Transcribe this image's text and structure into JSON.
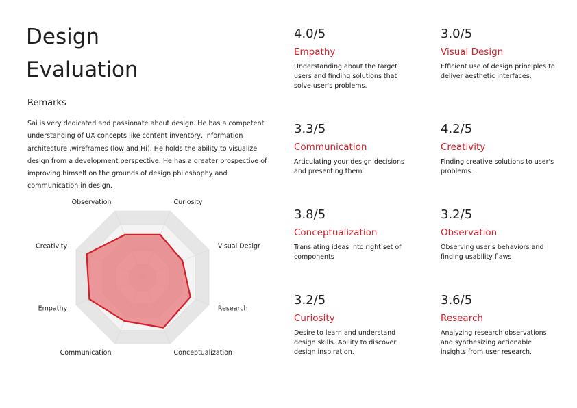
{
  "page": {
    "title_line1": "Design",
    "title_line2": "Evaluation",
    "remarks_heading": "Remarks",
    "remarks_text": "Sai is very dedicated and passionate about design. He has a competent understanding of UX concepts like content inventory, information architecture ,wireframes (low and Hi). He holds the ability to visualize design from a development perspective. He has a  greater prospective of improving himself on the grounds of design philoshophy and communication in design."
  },
  "criteria": [
    {
      "score": "4.0/5",
      "name": "Empathy",
      "desc": "Understanding about the target users and finding solutions that solve user's problems."
    },
    {
      "score": "3.0/5",
      "name": "Visual Design",
      "desc": "Efficient use of design principles to deliver aesthetic interfaces."
    },
    {
      "score": "3.3/5",
      "name": "Communication",
      "desc": "Articulating your design decisions and presenting them."
    },
    {
      "score": "4.2/5",
      "name": "Creativity",
      "desc": "Finding creative solutions to user's problems."
    },
    {
      "score": "3.8/5",
      "name": "Conceptualization",
      "desc": "Translating ideas into right set of components"
    },
    {
      "score": "3.2/5",
      "name": "Observation",
      "desc": "Observing user's behaviors and finding usability flaws"
    },
    {
      "score": "3.2/5",
      "name": "Curiosity",
      "desc": "Desire to learn and understand design skills. Ability to discover design inspiration."
    },
    {
      "score": "3.6/5",
      "name": "Research",
      "desc": "Analyzing research observations and synthesizing actionable insights from user research."
    }
  ],
  "chart_data": {
    "type": "radar",
    "categories": [
      "Curiosity",
      "Visual Design",
      "Research",
      "Conceptualization",
      "Communication",
      "Empathy",
      "Creativity",
      "Observation"
    ],
    "values": [
      3.2,
      3.0,
      3.6,
      3.8,
      3.3,
      4.0,
      4.2,
      3.2
    ],
    "range": [
      0,
      5
    ],
    "rings": 5,
    "colors": {
      "ring_dark": "#e6e6e6",
      "ring_light": "#f4f4f4",
      "fill": "#e8777a",
      "stroke": "#d1202a"
    }
  }
}
